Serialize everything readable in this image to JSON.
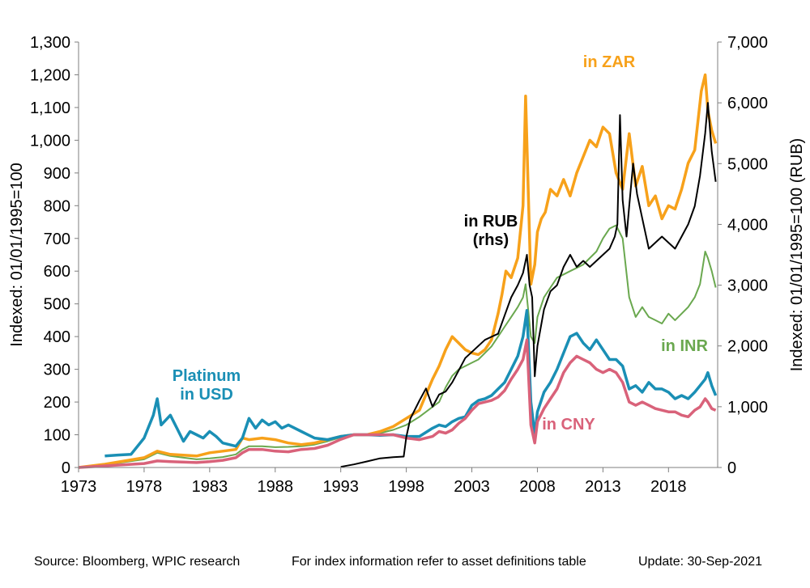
{
  "footer": {
    "source": "Source: Bloomberg, WPIC research",
    "note": "For index information refer to asset definitions table",
    "update": "Update: 30-Sep-2021"
  },
  "chart_data": {
    "type": "line",
    "title": "",
    "xlabel": "",
    "ylabel": "Indexed:  01/01/1995=100",
    "y2label": "Indexed:  01/01/1995=100  (RUB)",
    "xlim": [
      1973,
      2021.75
    ],
    "ylim": [
      0,
      1300
    ],
    "y2lim": [
      0,
      7000
    ],
    "x_ticks": [
      "1973",
      "1978",
      "1983",
      "1988",
      "1993",
      "1998",
      "2003",
      "2008",
      "2013",
      "2018"
    ],
    "y_ticks": [
      "0",
      "100",
      "200",
      "300",
      "400",
      "500",
      "600",
      "700",
      "800",
      "900",
      "1,000",
      "1,100",
      "1,200",
      "1,300"
    ],
    "y2_ticks": [
      "0",
      "1,000",
      "2,000",
      "3,000",
      "4,000",
      "5,000",
      "6,000",
      "7,000"
    ],
    "grid": false,
    "legend": "none",
    "annotations": [
      {
        "key": "usd",
        "lines": [
          "Platinum",
          "in USD"
        ],
        "color": "#1a8fb5"
      },
      {
        "key": "rub",
        "lines": [
          "in RUB",
          "(rhs)"
        ],
        "color": "#000000"
      },
      {
        "key": "zar",
        "lines": [
          "in ZAR"
        ],
        "color": "#f7a11a"
      },
      {
        "key": "inr",
        "lines": [
          "in INR"
        ],
        "color": "#6aa84f"
      },
      {
        "key": "cny",
        "lines": [
          "in CNY"
        ],
        "color": "#d9627a"
      }
    ],
    "series": [
      {
        "key": "zar",
        "name": "in ZAR",
        "axis": "left",
        "color": "#f7a11a",
        "x": [
          1973,
          1975,
          1978,
          1979,
          1980,
          1982,
          1983,
          1984,
          1985,
          1985.5,
          1986,
          1987,
          1988,
          1989,
          1990,
          1991,
          1992,
          1993,
          1994,
          1995,
          1996,
          1997,
          1998,
          1999,
          2000,
          2000.5,
          2001,
          2001.5,
          2002,
          2002.5,
          2003,
          2003.5,
          2004,
          2004.5,
          2005,
          2005.3,
          2005.6,
          2006,
          2006.5,
          2006.9,
          2007.1,
          2007.3,
          2007.5,
          2007.8,
          2008,
          2008.3,
          2008.6,
          2009,
          2009.5,
          2010,
          2010.5,
          2011,
          2011.5,
          2012,
          2012.5,
          2013,
          2013.5,
          2014,
          2014.5,
          2015,
          2015.5,
          2016,
          2016.5,
          2017,
          2017.5,
          2018,
          2018.5,
          2019,
          2019.5,
          2020,
          2020.5,
          2020.8,
          2021,
          2021.3,
          2021.6
        ],
        "y": [
          0,
          10,
          30,
          50,
          40,
          35,
          45,
          50,
          55,
          90,
          85,
          90,
          85,
          75,
          70,
          75,
          85,
          95,
          100,
          100,
          110,
          125,
          150,
          175,
          270,
          310,
          360,
          400,
          380,
          360,
          350,
          345,
          360,
          390,
          470,
          530,
          600,
          580,
          640,
          800,
          1135,
          850,
          560,
          620,
          720,
          760,
          780,
          850,
          830,
          880,
          830,
          900,
          950,
          1000,
          980,
          1040,
          1020,
          900,
          850,
          1020,
          860,
          920,
          800,
          830,
          760,
          800,
          790,
          850,
          930,
          970,
          1150,
          1200,
          1090,
          1030,
          990
        ]
      },
      {
        "key": "inr",
        "name": "in INR",
        "axis": "left",
        "color": "#6aa84f",
        "x": [
          1973,
          1975,
          1978,
          1979,
          1980,
          1982,
          1983,
          1984,
          1985,
          1985.5,
          1986,
          1987,
          1988,
          1989,
          1990,
          1991,
          1992,
          1993,
          1994,
          1995,
          1996,
          1997,
          1998,
          1999,
          2000,
          2000.5,
          2001,
          2001.5,
          2002,
          2002.5,
          2003,
          2003.5,
          2004,
          2004.5,
          2005,
          2005.5,
          2006,
          2006.5,
          2006.9,
          2007.1,
          2007.5,
          2007.8,
          2008,
          2008.5,
          2009,
          2009.5,
          2010,
          2010.5,
          2011,
          2011.5,
          2012,
          2012.5,
          2013,
          2013.5,
          2014,
          2014.5,
          2015,
          2015.5,
          2016,
          2016.5,
          2017,
          2017.5,
          2018,
          2018.5,
          2019,
          2019.5,
          2020,
          2020.4,
          2020.8,
          2021,
          2021.3,
          2021.6
        ],
        "y": [
          0,
          8,
          25,
          45,
          35,
          25,
          28,
          32,
          40,
          55,
          65,
          65,
          62,
          63,
          65,
          70,
          80,
          92,
          100,
          100,
          105,
          115,
          130,
          155,
          185,
          200,
          245,
          280,
          300,
          310,
          320,
          330,
          350,
          370,
          400,
          430,
          460,
          490,
          520,
          560,
          400,
          380,
          460,
          520,
          550,
          580,
          590,
          600,
          610,
          620,
          640,
          660,
          700,
          730,
          740,
          700,
          520,
          460,
          490,
          460,
          450,
          440,
          470,
          450,
          470,
          490,
          520,
          560,
          660,
          640,
          600,
          550
        ]
      },
      {
        "key": "usd",
        "name": "Platinum in USD",
        "axis": "left",
        "color": "#1a8fb5",
        "x": [
          1975,
          1976,
          1977,
          1978,
          1978.7,
          1979,
          1979.3,
          1980,
          1980.5,
          1981,
          1981.5,
          1982,
          1982.5,
          1983,
          1983.5,
          1984,
          1984.5,
          1985,
          1985.5,
          1986,
          1986.5,
          1987,
          1987.5,
          1988,
          1988.5,
          1989,
          1990,
          1991,
          1992,
          1993,
          1994,
          1995,
          1996,
          1997,
          1998,
          1999,
          2000,
          2000.5,
          2001,
          2001.5,
          2002,
          2002.5,
          2003,
          2003.5,
          2004,
          2004.5,
          2005,
          2005.5,
          2006,
          2006.5,
          2006.9,
          2007.2,
          2007.5,
          2007.8,
          2008,
          2008.5,
          2009,
          2009.5,
          2010,
          2010.5,
          2011,
          2011.5,
          2012,
          2012.5,
          2013,
          2013.5,
          2014,
          2014.5,
          2015,
          2015.5,
          2016,
          2016.5,
          2017,
          2017.5,
          2018,
          2018.5,
          2019,
          2019.5,
          2020,
          2020.4,
          2020.8,
          2021,
          2021.3,
          2021.6
        ],
        "y": [
          35,
          38,
          40,
          90,
          160,
          210,
          130,
          160,
          120,
          80,
          110,
          100,
          90,
          110,
          95,
          75,
          70,
          65,
          90,
          150,
          120,
          145,
          130,
          140,
          120,
          130,
          110,
          90,
          85,
          95,
          100,
          100,
          98,
          100,
          95,
          95,
          120,
          130,
          125,
          140,
          150,
          155,
          190,
          205,
          210,
          220,
          240,
          260,
          300,
          340,
          400,
          480,
          200,
          100,
          170,
          230,
          260,
          300,
          350,
          400,
          410,
          380,
          360,
          390,
          360,
          330,
          330,
          310,
          240,
          250,
          230,
          260,
          240,
          240,
          230,
          210,
          220,
          210,
          230,
          250,
          270,
          290,
          250,
          220
        ]
      },
      {
        "key": "cny",
        "name": "in CNY",
        "axis": "left",
        "color": "#d9627a",
        "x": [
          1973,
          1975,
          1978,
          1979,
          1980,
          1982,
          1983,
          1984,
          1985,
          1985.5,
          1986,
          1987,
          1988,
          1989,
          1990,
          1991,
          1992,
          1993,
          1994,
          1995,
          1996,
          1997,
          1998,
          1999,
          2000,
          2000.5,
          2001,
          2001.5,
          2002,
          2002.5,
          2003,
          2003.5,
          2004,
          2004.5,
          2005,
          2005.5,
          2006,
          2006.5,
          2006.9,
          2007.2,
          2007.5,
          2007.8,
          2008,
          2008.5,
          2009,
          2009.5,
          2010,
          2010.5,
          2011,
          2011.5,
          2012,
          2012.5,
          2013,
          2013.5,
          2014,
          2014.5,
          2015,
          2015.5,
          2016,
          2016.5,
          2017,
          2017.5,
          2018,
          2018.5,
          2019,
          2019.5,
          2020,
          2020.4,
          2020.8,
          2021,
          2021.3,
          2021.6
        ],
        "y": [
          0,
          5,
          12,
          20,
          18,
          15,
          18,
          22,
          30,
          45,
          55,
          55,
          50,
          48,
          55,
          58,
          68,
          86,
          100,
          100,
          100,
          100,
          90,
          85,
          95,
          110,
          105,
          115,
          135,
          150,
          175,
          195,
          200,
          205,
          215,
          235,
          270,
          300,
          330,
          390,
          130,
          75,
          140,
          180,
          210,
          240,
          290,
          320,
          340,
          330,
          320,
          300,
          290,
          300,
          290,
          260,
          200,
          190,
          200,
          190,
          180,
          175,
          170,
          170,
          160,
          155,
          175,
          185,
          210,
          200,
          180,
          175
        ]
      },
      {
        "key": "rub",
        "name": "in RUB (rhs)",
        "axis": "right",
        "color": "#000000",
        "x": [
          1993,
          1994,
          1995,
          1996,
          1997,
          1997.8,
          1998,
          1998.3,
          1999,
          1999.5,
          2000,
          2000.5,
          2001,
          2001.5,
          2002,
          2002.5,
          2003,
          2003.5,
          2004,
          2004.5,
          2005,
          2005.5,
          2006,
          2006.5,
          2006.9,
          2007.2,
          2007.4,
          2007.6,
          2007.8,
          2008,
          2008.5,
          2009,
          2009.5,
          2010,
          2010.5,
          2011,
          2011.5,
          2012,
          2012.5,
          2013,
          2013.5,
          2013.9,
          2014.1,
          2014.3,
          2014.5,
          2014.8,
          2015,
          2015.3,
          2015.6,
          2016,
          2016.5,
          2017,
          2017.5,
          2018,
          2018.5,
          2019,
          2019.5,
          2020,
          2020.4,
          2020.8,
          2021,
          2021.3,
          2021.6
        ],
        "y": [
          10,
          50,
          100,
          150,
          170,
          180,
          500,
          800,
          1100,
          1300,
          1000,
          1200,
          1250,
          1400,
          1600,
          1800,
          1900,
          2000,
          2100,
          2150,
          2200,
          2500,
          2800,
          3000,
          3200,
          3500,
          3000,
          2800,
          1500,
          2000,
          2600,
          2900,
          3000,
          3300,
          3500,
          3300,
          3400,
          3300,
          3400,
          3500,
          3600,
          3800,
          4000,
          5800,
          4400,
          3800,
          4300,
          5000,
          4500,
          4100,
          3600,
          3700,
          3800,
          3700,
          3600,
          3800,
          4000,
          4300,
          4800,
          5500,
          6000,
          5200,
          4700
        ]
      }
    ]
  }
}
